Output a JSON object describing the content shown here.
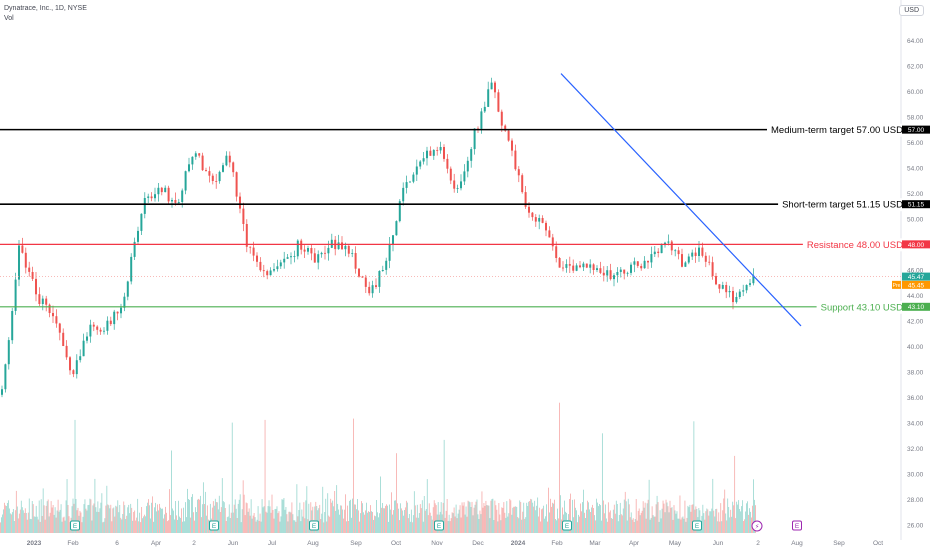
{
  "header": {
    "title": "Dynatrace, Inc., 1D, NYSE",
    "sub": "Vol"
  },
  "currency_button": "USD",
  "colors": {
    "up": "#26a69a",
    "down": "#ef5350",
    "up_vol": "#8fd3cb",
    "down_vol": "#f5a3a1",
    "trend": "#2962ff",
    "resistance": "#f23645",
    "support": "#4caf50",
    "target": "#000000",
    "pre": "#ff9800"
  },
  "chart_data": {
    "type": "candlestick",
    "y_axis": {
      "range": [
        25.2,
        65.6
      ],
      "ticks": [
        "26.00",
        "28.00",
        "30.00",
        "32.00",
        "34.00",
        "36.00",
        "38.00",
        "40.00",
        "42.00",
        "44.00",
        "46.00",
        "48.00",
        "50.00",
        "52.00",
        "54.00",
        "56.00",
        "58.00",
        "60.00",
        "62.00",
        "64.00"
      ]
    },
    "x_axis": {
      "ticks": [
        {
          "label": "2023",
          "bold": true
        },
        {
          "label": "Feb",
          "bold": false
        },
        {
          "label": "6",
          "bold": false
        },
        {
          "label": "Apr",
          "bold": false
        },
        {
          "label": "2",
          "bold": false
        },
        {
          "label": "Jun",
          "bold": false
        },
        {
          "label": "Jul",
          "bold": false
        },
        {
          "label": "Aug",
          "bold": false
        },
        {
          "label": "Sep",
          "bold": false
        },
        {
          "label": "Oct",
          "bold": false
        },
        {
          "label": "Nov",
          "bold": false
        },
        {
          "label": "Dec",
          "bold": false
        },
        {
          "label": "2024",
          "bold": true
        },
        {
          "label": "Feb",
          "bold": false
        },
        {
          "label": "Mar",
          "bold": false
        },
        {
          "label": "Apr",
          "bold": false
        },
        {
          "label": "May",
          "bold": false
        },
        {
          "label": "Jun",
          "bold": false
        },
        {
          "label": "2",
          "bold": false
        },
        {
          "label": "Aug",
          "bold": false
        },
        {
          "label": "Sep",
          "bold": false
        },
        {
          "label": "Oct",
          "bold": false
        }
      ]
    },
    "levels": [
      {
        "name": "Medium-term target 57.00 USD",
        "value": 57.0,
        "tag": "57.00",
        "kind": "target"
      },
      {
        "name": "Short-term target 51.15 USD",
        "value": 51.15,
        "tag": "51.15",
        "kind": "target"
      },
      {
        "name": "Resistance 48.00 USD",
        "value": 48.0,
        "tag": "48.00",
        "kind": "resistance"
      },
      {
        "name": "Support 43.10 USD",
        "value": 43.1,
        "tag": "43.10",
        "kind": "support"
      }
    ],
    "trendline": {
      "from": {
        "date": "2024-02-09",
        "price": 61.4
      },
      "to": {
        "date": "2024-08-26",
        "price": 41.6
      }
    },
    "last_price": {
      "value": 45.47,
      "tag": "45.47"
    },
    "pre_market": {
      "label": "Pre",
      "value": 45.45,
      "tag": "45.45"
    },
    "anchors": [
      {
        "price": 36.2,
        "note": "Jan 2023"
      },
      {
        "price": 47.9,
        "note": "early Feb 2023"
      },
      {
        "price": 44.0,
        "note": "Feb"
      },
      {
        "price": 42.3,
        "note": "early Mar"
      },
      {
        "price": 37.3,
        "note": "Mar low"
      },
      {
        "price": 41.8,
        "note": "Apr"
      },
      {
        "price": 41.5,
        "note": "late Apr"
      },
      {
        "price": 43.8,
        "note": "early May"
      },
      {
        "price": 51.0,
        "note": "mid May"
      },
      {
        "price": 52.4,
        "note": "late May"
      },
      {
        "price": 51.2,
        "note": "Jun"
      },
      {
        "price": 55.5,
        "note": "Jun high"
      },
      {
        "price": 52.8,
        "note": "late Jun"
      },
      {
        "price": 55.1,
        "note": "Jul"
      },
      {
        "price": 48.0,
        "note": "late Jul"
      },
      {
        "price": 45.8,
        "note": "Aug"
      },
      {
        "price": 46.2,
        "note": "mid Aug"
      },
      {
        "price": 48.0,
        "note": "Sep"
      },
      {
        "price": 46.8,
        "note": "Sep"
      },
      {
        "price": 48.1,
        "note": "Oct"
      },
      {
        "price": 47.3,
        "note": "Oct"
      },
      {
        "price": 44.0,
        "note": "early Nov low"
      },
      {
        "price": 46.5,
        "note": "Nov"
      },
      {
        "price": 52.5,
        "note": "late Nov"
      },
      {
        "price": 54.8,
        "note": "Dec"
      },
      {
        "price": 55.6,
        "note": "late Dec"
      },
      {
        "price": 51.9,
        "note": "early Jan 2024"
      },
      {
        "price": 56.5,
        "note": "Jan"
      },
      {
        "price": 60.5,
        "note": "Feb high"
      },
      {
        "price": 55.8,
        "note": "Feb"
      },
      {
        "price": 51.0,
        "note": "late Feb"
      },
      {
        "price": 49.4,
        "note": "early Mar"
      },
      {
        "price": 46.3,
        "note": "Mar"
      },
      {
        "price": 45.9,
        "note": "Apr"
      },
      {
        "price": 46.5,
        "note": "Apr"
      },
      {
        "price": 45.2,
        "note": "late Apr"
      },
      {
        "price": 46.2,
        "note": "May"
      },
      {
        "price": 46.5,
        "note": "May"
      },
      {
        "price": 48.6,
        "note": "late May"
      },
      {
        "price": 46.4,
        "note": "Jun"
      },
      {
        "price": 47.5,
        "note": "mid Jun"
      },
      {
        "price": 44.8,
        "note": "late Jun"
      },
      {
        "price": 43.6,
        "note": "Jul low"
      },
      {
        "price": 45.47,
        "note": "last"
      }
    ],
    "volume_peaks": [
      {
        "index": 75,
        "rel": 0.85
      },
      {
        "index": 172,
        "rel": 0.62
      },
      {
        "index": 233,
        "rel": 0.83
      },
      {
        "index": 266,
        "rel": 0.85
      },
      {
        "index": 355,
        "rel": 0.86
      },
      {
        "index": 398,
        "rel": 0.6
      },
      {
        "index": 446,
        "rel": 0.7
      },
      {
        "index": 562,
        "rel": 0.98
      },
      {
        "index": 605,
        "rel": 0.75
      },
      {
        "index": 697,
        "rel": 0.84
      },
      {
        "index": 738,
        "rel": 0.58
      }
    ],
    "events": [
      {
        "glyph": "E",
        "kind": "earnings"
      },
      {
        "glyph": "E",
        "kind": "earnings"
      },
      {
        "glyph": "E",
        "kind": "earnings"
      },
      {
        "glyph": "E",
        "kind": "earnings"
      },
      {
        "glyph": "E",
        "kind": "earnings"
      },
      {
        "glyph": "E",
        "kind": "earnings"
      },
      {
        "glyph": "E",
        "kind": "earnings"
      },
      {
        "glyph": "E",
        "kind": "earnings"
      },
      {
        "glyph": "⚡",
        "kind": "news"
      },
      {
        "glyph": "E",
        "kind": "upcoming"
      }
    ]
  }
}
